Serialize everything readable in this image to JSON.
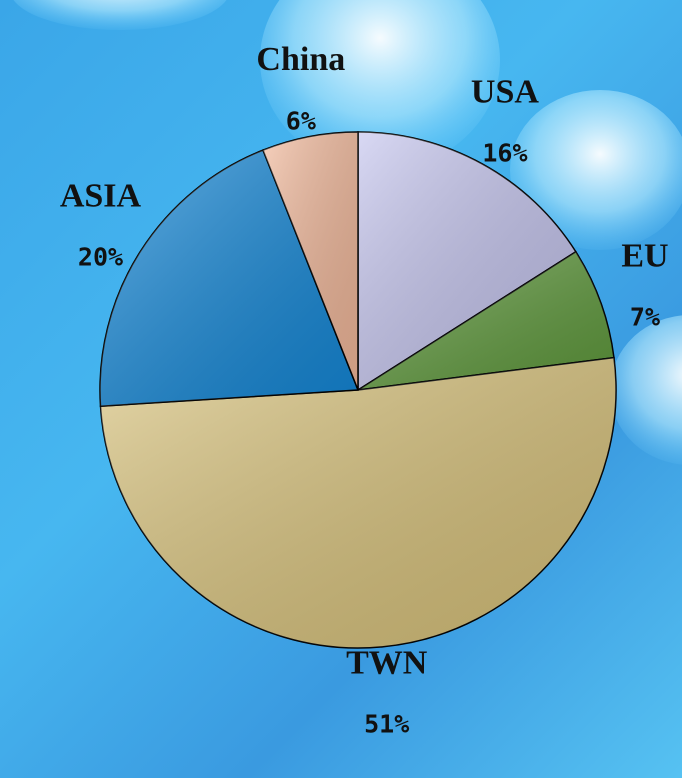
{
  "chart_data": {
    "type": "pie",
    "categories": [
      "USA",
      "EU",
      "TWN",
      "ASIA",
      "China"
    ],
    "values": [
      16,
      7,
      51,
      20,
      6
    ],
    "value_labels": [
      "16%",
      "7%",
      "51%",
      "20%",
      "6%"
    ],
    "colors": [
      "#c4c4ee",
      "#5f9a3c",
      "#d8c27a",
      "#1488d8",
      "#f2b89a"
    ]
  }
}
